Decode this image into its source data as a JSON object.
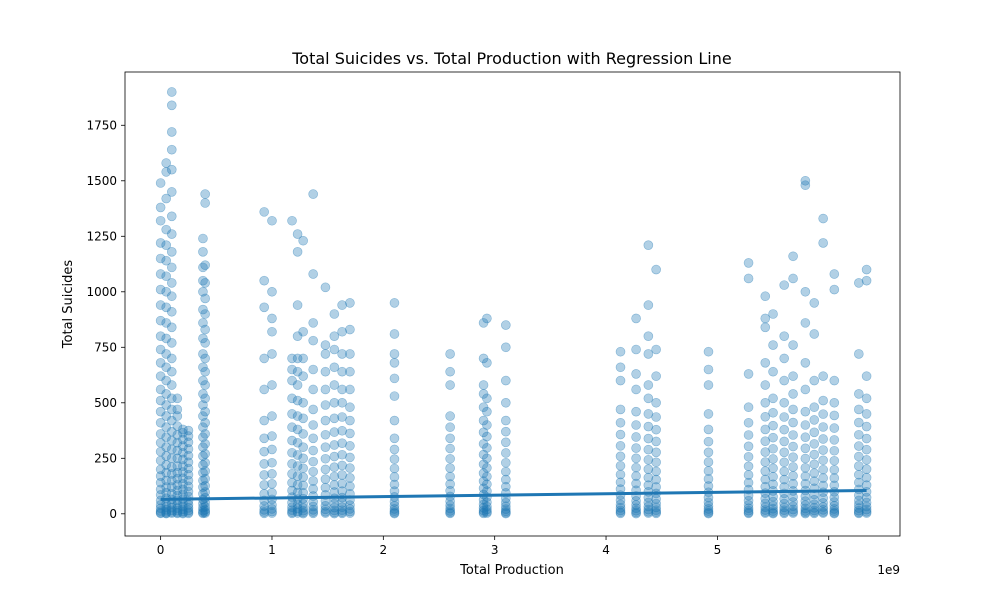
{
  "chart_data": {
    "type": "scatter",
    "title": "Total Suicides vs. Total Production with Regression Line",
    "xlabel": "Total Production",
    "ylabel": "Total Suicides",
    "x_offset_label": "1e9",
    "xlim": [
      -320000000,
      6640000000
    ],
    "ylim": [
      -100,
      1990
    ],
    "xticks": [
      {
        "value": 0,
        "label": "0"
      },
      {
        "value": 1000000000,
        "label": "1"
      },
      {
        "value": 2000000000,
        "label": "2"
      },
      {
        "value": 3000000000,
        "label": "3"
      },
      {
        "value": 4000000000,
        "label": "4"
      },
      {
        "value": 5000000000,
        "label": "5"
      },
      {
        "value": 6000000000,
        "label": "6"
      }
    ],
    "yticks": [
      {
        "value": 0,
        "label": "0"
      },
      {
        "value": 250,
        "label": "250"
      },
      {
        "value": 500,
        "label": "500"
      },
      {
        "value": 750,
        "label": "750"
      },
      {
        "value": 1000,
        "label": "1000"
      },
      {
        "value": 1250,
        "label": "1250"
      },
      {
        "value": 1500,
        "label": "1500"
      },
      {
        "value": 1750,
        "label": "1750"
      }
    ],
    "grid": false,
    "colors": {
      "points": "#1f77b4",
      "regression": "#1f77b4"
    },
    "point_alpha": 0.35,
    "clusters": [
      {
        "x": 0,
        "values": [
          2,
          5,
          12,
          25,
          40,
          60,
          85,
          110,
          140,
          170,
          200,
          240,
          280,
          320,
          360,
          410,
          460,
          510,
          560,
          620,
          680,
          740,
          800,
          870,
          940,
          1010,
          1080,
          1150,
          1220,
          1320,
          1380,
          1490
        ]
      },
      {
        "x": 50000000,
        "values": [
          1,
          4,
          9,
          18,
          30,
          45,
          70,
          95,
          120,
          150,
          185,
          220,
          260,
          300,
          345,
          390,
          440,
          490,
          540,
          600,
          660,
          720,
          790,
          860,
          930,
          1000,
          1070,
          1140,
          1210,
          1280,
          1420,
          1540,
          1580
        ]
      },
      {
        "x": 100000000,
        "values": [
          3,
          8,
          15,
          28,
          45,
          65,
          90,
          120,
          150,
          180,
          210,
          250,
          290,
          330,
          370,
          420,
          470,
          520,
          580,
          640,
          700,
          770,
          840,
          910,
          980,
          1040,
          1110,
          1180,
          1260,
          1340,
          1450,
          1550,
          1640,
          1720,
          1840,
          1900
        ]
      },
      {
        "x": 150000000,
        "values": [
          2,
          6,
          14,
          26,
          42,
          60,
          82,
          105,
          130,
          158,
          185,
          215,
          250,
          285,
          320,
          355,
          395,
          440,
          470,
          520
        ]
      },
      {
        "x": 200000000,
        "values": [
          1,
          5,
          11,
          20,
          33,
          48,
          66,
          88,
          110,
          135,
          160,
          188,
          215,
          245,
          275,
          305,
          335,
          365,
          380
        ]
      },
      {
        "x": 250000000,
        "values": [
          2,
          7,
          15,
          27,
          41,
          58,
          78,
          100,
          124,
          150,
          176,
          204,
          232,
          262,
          292,
          322,
          350,
          375
        ]
      },
      {
        "x": 380000000,
        "values": [
          2,
          6,
          14,
          28,
          45,
          65,
          90,
          120,
          150,
          185,
          220,
          260,
          300,
          345,
          390,
          440,
          490,
          540,
          600,
          660,
          720,
          790,
          860,
          920,
          1000,
          1050,
          1110,
          1180,
          1240
        ]
      },
      {
        "x": 400000000,
        "values": [
          3,
          9,
          18,
          32,
          50,
          72,
          98,
          126,
          158,
          192,
          230,
          270,
          315,
          360,
          410,
          460,
          520,
          580,
          640,
          700,
          770,
          830,
          900,
          970,
          1040,
          1120,
          1400,
          1440
        ]
      },
      {
        "x": 930000000,
        "values": [
          2,
          8,
          18,
          35,
          60,
          90,
          130,
          175,
          225,
          280,
          340,
          420,
          560,
          700,
          930,
          1050,
          1360
        ]
      },
      {
        "x": 1000000000,
        "values": [
          3,
          10,
          22,
          40,
          65,
          95,
          135,
          180,
          230,
          290,
          350,
          440,
          580,
          720,
          820,
          880,
          1000,
          1320
        ]
      },
      {
        "x": 1180000000,
        "values": [
          2,
          7,
          16,
          30,
          50,
          75,
          105,
          140,
          180,
          225,
          275,
          330,
          390,
          450,
          520,
          600,
          650,
          700,
          1320
        ]
      },
      {
        "x": 1230000000,
        "values": [
          4,
          11,
          24,
          42,
          66,
          96,
          130,
          170,
          215,
          265,
          320,
          380,
          440,
          510,
          580,
          640,
          700,
          800,
          940,
          1260,
          1180
        ]
      },
      {
        "x": 1280000000,
        "values": [
          1,
          6,
          14,
          27,
          45,
          68,
          95,
          128,
          165,
          205,
          250,
          300,
          360,
          430,
          500,
          620,
          700,
          820,
          1230
        ]
      },
      {
        "x": 1370000000,
        "values": [
          2,
          8,
          18,
          33,
          54,
          80,
          112,
          148,
          190,
          235,
          285,
          340,
          400,
          470,
          560,
          650,
          780,
          860,
          1080,
          1440
        ]
      },
      {
        "x": 1480000000,
        "values": [
          3,
          9,
          20,
          36,
          58,
          85,
          118,
          156,
          200,
          248,
          300,
          356,
          420,
          490,
          560,
          640,
          720,
          760,
          1020
        ]
      },
      {
        "x": 1560000000,
        "values": [
          1,
          6,
          15,
          28,
          46,
          70,
          98,
          130,
          168,
          210,
          258,
          310,
          368,
          430,
          500,
          580,
          660,
          740,
          800,
          900
        ]
      },
      {
        "x": 1630000000,
        "values": [
          2,
          7,
          16,
          30,
          49,
          73,
          102,
          136,
          175,
          218,
          266,
          318,
          374,
          436,
          500,
          560,
          640,
          720,
          820,
          940
        ]
      },
      {
        "x": 1700000000,
        "values": [
          3,
          10,
          22,
          39,
          62,
          90,
          124,
          162,
          206,
          254,
          306,
          362,
          420,
          480,
          560,
          640,
          720,
          830,
          950
        ]
      },
      {
        "x": 2100000000,
        "values": [
          1,
          5,
          12,
          22,
          36,
          54,
          76,
          102,
          132,
          166,
          204,
          246,
          290,
          340,
          420,
          530,
          610,
          680,
          720,
          810,
          950
        ]
      },
      {
        "x": 2600000000,
        "values": [
          2,
          6,
          13,
          24,
          38,
          56,
          78,
          104,
          134,
          168,
          206,
          248,
          294,
          340,
          390,
          440,
          580,
          640,
          720
        ]
      },
      {
        "x": 2900000000,
        "values": [
          2,
          7,
          15,
          27,
          43,
          63,
          87,
          115,
          147,
          183,
          223,
          267,
          315,
          367,
          420,
          480,
          540,
          580,
          700,
          860
        ]
      },
      {
        "x": 2930000000,
        "values": [
          3,
          9,
          19,
          33,
          52,
          75,
          102,
          133,
          168,
          207,
          250,
          297,
          348,
          400,
          460,
          520,
          680,
          880
        ]
      },
      {
        "x": 3100000000,
        "values": [
          1,
          5,
          11,
          21,
          34,
          50,
          70,
          94,
          122,
          154,
          190,
          230,
          274,
          322,
          370,
          420,
          500,
          600,
          750,
          850
        ]
      },
      {
        "x": 4130000000,
        "values": [
          2,
          7,
          15,
          27,
          42,
          61,
          84,
          111,
          142,
          177,
          216,
          259,
          306,
          357,
          410,
          470,
          600,
          660,
          730
        ]
      },
      {
        "x": 4270000000,
        "values": [
          1,
          6,
          14,
          25,
          40,
          58,
          80,
          106,
          136,
          170,
          208,
          250,
          296,
          346,
          400,
          460,
          560,
          630,
          740,
          880
        ]
      },
      {
        "x": 4380000000,
        "values": [
          3,
          9,
          19,
          33,
          51,
          73,
          99,
          129,
          163,
          201,
          243,
          289,
          339,
          393,
          450,
          520,
          580,
          720,
          800,
          940,
          1210
        ]
      },
      {
        "x": 4450000000,
        "values": [
          2,
          7,
          16,
          29,
          46,
          67,
          92,
          121,
          154,
          191,
          232,
          277,
          326,
          379,
          436,
          500,
          620,
          740,
          1100
        ]
      },
      {
        "x": 4920000000,
        "values": [
          1,
          5,
          12,
          22,
          35,
          52,
          73,
          97,
          125,
          157,
          193,
          233,
          277,
          325,
          380,
          450,
          580,
          650,
          730
        ]
      },
      {
        "x": 5280000000,
        "values": [
          2,
          6,
          14,
          25,
          40,
          59,
          82,
          109,
          140,
          175,
          214,
          257,
          304,
          355,
          410,
          480,
          630,
          1060,
          1130
        ]
      },
      {
        "x": 5430000000,
        "values": [
          3,
          8,
          17,
          30,
          47,
          68,
          93,
          122,
          155,
          192,
          233,
          278,
          327,
          380,
          437,
          500,
          580,
          680,
          840,
          880,
          980
        ]
      },
      {
        "x": 5500000000,
        "values": [
          1,
          5,
          12,
          23,
          37,
          55,
          77,
          103,
          133,
          167,
          205,
          247,
          293,
          343,
          397,
          455,
          520,
          640,
          760,
          900
        ]
      },
      {
        "x": 5600000000,
        "values": [
          2,
          7,
          16,
          29,
          46,
          67,
          92,
          121,
          154,
          191,
          232,
          277,
          326,
          379,
          436,
          500,
          600,
          700,
          800,
          1030
        ]
      },
      {
        "x": 5680000000,
        "values": [
          3,
          9,
          19,
          34,
          53,
          76,
          103,
          135,
          171,
          211,
          255,
          303,
          355,
          411,
          470,
          540,
          620,
          760,
          1060,
          1160
        ]
      },
      {
        "x": 5790000000,
        "values": [
          1,
          6,
          13,
          24,
          39,
          57,
          79,
          105,
          135,
          169,
          207,
          249,
          295,
          345,
          400,
          460,
          560,
          680,
          860,
          1000,
          1480,
          1500
        ]
      },
      {
        "x": 5870000000,
        "values": [
          2,
          7,
          15,
          27,
          43,
          63,
          87,
          115,
          147,
          183,
          223,
          267,
          315,
          367,
          423,
          480,
          600,
          810,
          950
        ]
      },
      {
        "x": 5950000000,
        "values": [
          3,
          8,
          18,
          31,
          49,
          71,
          97,
          127,
          161,
          199,
          241,
          287,
          337,
          391,
          449,
          510,
          620,
          1220,
          1330
        ]
      },
      {
        "x": 6050000000,
        "values": [
          1,
          5,
          12,
          22,
          36,
          53,
          74,
          99,
          128,
          161,
          198,
          239,
          284,
          333,
          386,
          443,
          500,
          600,
          1010,
          1080
        ]
      },
      {
        "x": 6270000000,
        "values": [
          2,
          6,
          14,
          26,
          41,
          60,
          83,
          110,
          141,
          176,
          215,
          258,
          305,
          356,
          411,
          470,
          540,
          720,
          1040
        ]
      },
      {
        "x": 6340000000,
        "values": [
          3,
          9,
          19,
          33,
          51,
          73,
          99,
          129,
          163,
          201,
          243,
          289,
          339,
          393,
          450,
          520,
          620,
          1050,
          1100
        ]
      }
    ],
    "regression": {
      "x": [
        0,
        6340000000
      ],
      "y": [
        65,
        105
      ]
    }
  }
}
